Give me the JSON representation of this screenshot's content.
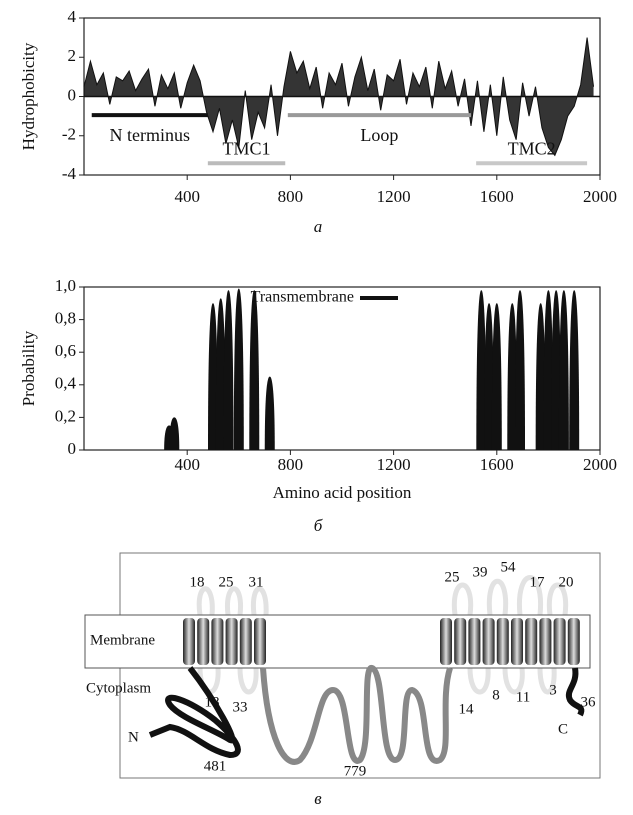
{
  "chart_data": [
    {
      "type": "area",
      "y_label": "Hydrophobicity",
      "caption": "а",
      "x": [
        0,
        25,
        50,
        75,
        100,
        125,
        150,
        175,
        200,
        225,
        250,
        275,
        300,
        325,
        350,
        375,
        400,
        425,
        450,
        475,
        500,
        525,
        550,
        575,
        600,
        625,
        650,
        675,
        700,
        725,
        750,
        775,
        800,
        825,
        850,
        875,
        900,
        925,
        950,
        975,
        1000,
        1025,
        1050,
        1075,
        1100,
        1125,
        1150,
        1175,
        1200,
        1225,
        1250,
        1275,
        1300,
        1325,
        1350,
        1375,
        1400,
        1425,
        1450,
        1475,
        1500,
        1525,
        1550,
        1575,
        1600,
        1625,
        1650,
        1675,
        1700,
        1725,
        1750,
        1775,
        1800,
        1825,
        1850,
        1875,
        1900,
        1925,
        1950,
        1975
      ],
      "series": [
        {
          "color": "#111111",
          "values": [
            0.5,
            1.8,
            0.6,
            1.2,
            -0.4,
            1.0,
            0.8,
            1.3,
            0.3,
            0.9,
            1.4,
            -0.5,
            1.1,
            0.4,
            1.2,
            -0.6,
            0.7,
            1.6,
            0.8,
            -0.8,
            -1.8,
            -0.6,
            -2.4,
            -1.2,
            -2.6,
            0.3,
            -2.2,
            -0.8,
            -1.6,
            0.6,
            -2.0,
            0.5,
            2.3,
            1.2,
            1.8,
            0.4,
            1.5,
            -0.6,
            1.2,
            0.6,
            1.7,
            -0.5,
            1.0,
            2.0,
            0.3,
            1.4,
            -0.7,
            1.1,
            0.8,
            1.9,
            -0.4,
            1.2,
            0.5,
            1.5,
            -0.6,
            1.8,
            0.4,
            1.3,
            -0.5,
            0.9,
            -1.5,
            0.8,
            -1.8,
            0.6,
            -2.0,
            1.0,
            -1.2,
            -2.2,
            0.7,
            -1.0,
            0.5,
            -1.6,
            -2.6,
            -3.0,
            -2.2,
            -1.0,
            -0.5,
            0.6,
            3.0,
            0.5
          ]
        }
      ],
      "regions": [
        {
          "label": "N terminus",
          "start": 30,
          "end": 480,
          "color": "#111111"
        },
        {
          "label": "TMC1",
          "start": 480,
          "end": 780,
          "color": "#bbbbbb"
        },
        {
          "label": "Loop",
          "start": 790,
          "end": 1500,
          "color": "#999999"
        },
        {
          "label": "TMC2",
          "start": 1520,
          "end": 1950,
          "color": "#c8c8c8"
        }
      ],
      "xlim": [
        0,
        2000
      ],
      "xticks": [
        400,
        800,
        1200,
        1600,
        2000
      ],
      "ylim": [
        -4,
        4
      ],
      "yticks": [
        -4,
        -2,
        0,
        2,
        4
      ]
    },
    {
      "type": "spike",
      "y_label": "Probability",
      "x_label": "Amino acid position",
      "caption": "б",
      "legend": "top",
      "x": [
        330,
        350,
        500,
        530,
        560,
        600,
        660,
        720,
        1540,
        1570,
        1600,
        1660,
        1690,
        1770,
        1800,
        1830,
        1860,
        1900
      ],
      "series": [
        {
          "name": "Transmembrane",
          "color": "#111111",
          "values": [
            0.15,
            0.2,
            0.9,
            0.93,
            0.98,
            0.99,
            0.98,
            0.45,
            0.98,
            0.9,
            0.9,
            0.9,
            0.98,
            0.9,
            0.98,
            0.98,
            0.98,
            0.98
          ]
        }
      ],
      "xlim": [
        0,
        2000
      ],
      "xticks": [
        400,
        800,
        1200,
        1600,
        2000
      ],
      "ylim": [
        0,
        1
      ],
      "yticks": [
        0,
        {
          "value": 0.2,
          "label": "0,2"
        },
        {
          "value": 0.4,
          "label": "0,4"
        },
        {
          "value": 0.6,
          "label": "0,6"
        },
        {
          "value": 0.8,
          "label": "0,8"
        },
        {
          "value": 1,
          "label": "1,0"
        }
      ]
    }
  ],
  "diagram": {
    "membrane": "Membrane",
    "cytoplasm": "Cytoplasm",
    "n_end": "N",
    "c_end": "C",
    "caption": "в",
    "top_left": [
      "18",
      "25",
      "31"
    ],
    "top_right": [
      "25",
      "39",
      "54",
      "17",
      "20"
    ],
    "bottom_left": [
      "18",
      "33",
      "481"
    ],
    "loop": "779",
    "bottom_right": [
      "14",
      "8",
      "11",
      "3",
      "36"
    ]
  }
}
